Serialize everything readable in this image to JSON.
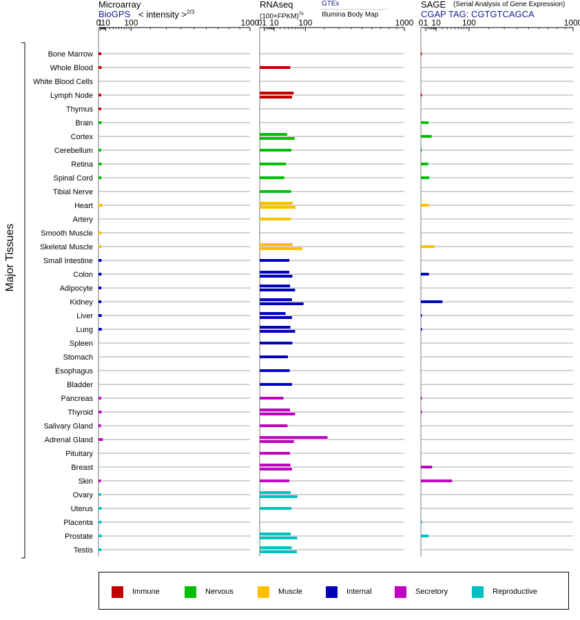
{
  "panels": [
    {
      "title": "Microarray",
      "link": "BioGPS",
      "subtitle": "< intensity >",
      "subtitle_exp": "2/3"
    },
    {
      "title": "RNAseq",
      "subtitle": "(100×FPKM)",
      "subtitle_exp": "½",
      "link": "GTEx",
      "link2": "Illumina Body Map"
    },
    {
      "title": "SAGE",
      "title_note": "(Serial Analysis of Gene Expression)",
      "link": "CGAP TAG: CGTGTCAGCA"
    }
  ],
  "yaxis_title": "Major Tissues",
  "legend": [
    {
      "label": "Immune",
      "color": "#c00000"
    },
    {
      "label": "Nervous",
      "color": "#00c000"
    },
    {
      "label": "Muscle",
      "color": "#ffc000"
    },
    {
      "label": "Internal",
      "color": "#0000bb"
    },
    {
      "label": "Secretory",
      "color": "#c000c0"
    },
    {
      "label": "Reproductive",
      "color": "#00c0c0"
    }
  ],
  "chart_data": {
    "type": "bar",
    "scale": "log-like (value^(2/3) and value^(1/2) transforms)",
    "xticks": [
      "0",
      "1",
      "10",
      "100",
      "1000"
    ],
    "xtick_values": [
      0,
      1,
      10,
      100,
      1000
    ],
    "xlim": [
      0,
      1000
    ],
    "categories": [
      "Bone Marrow",
      "Whole Blood",
      "White Blood Cells",
      "Lymph Node",
      "Thymus",
      "Brain",
      "Cortex",
      "Cerebellum",
      "Retina",
      "Spinal Cord",
      "Tibial Nerve",
      "Heart",
      "Artery",
      "Smooth Muscle",
      "Skeletal Muscle",
      "Small Intestine",
      "Colon",
      "Adipocyte",
      "Kidney",
      "Liver",
      "Lung",
      "Spleen",
      "Stomach",
      "Esophagus",
      "Bladder",
      "Pancreas",
      "Thyroid",
      "Salivary Gland",
      "Adrenal Gland",
      "Pituitary",
      "Breast",
      "Skin",
      "Ovary",
      "Uterus",
      "Placenta",
      "Prostate",
      "Testis"
    ],
    "groups": [
      "Immune",
      "Immune",
      "Immune",
      "Immune",
      "Immune",
      "Nervous",
      "Nervous",
      "Nervous",
      "Nervous",
      "Nervous",
      "Nervous",
      "Muscle",
      "Muscle",
      "Muscle",
      "Muscle",
      "Internal",
      "Internal",
      "Internal",
      "Internal",
      "Internal",
      "Internal",
      "Internal",
      "Internal",
      "Internal",
      "Internal",
      "Secretory",
      "Secretory",
      "Secretory",
      "Secretory",
      "Secretory",
      "Secretory",
      "Secretory",
      "Reproductive",
      "Reproductive",
      "Reproductive",
      "Reproductive",
      "Reproductive"
    ],
    "series": [
      {
        "name": "Microarray",
        "values": [
          [
            2.5
          ],
          [
            2.8
          ],
          [],
          [
            2.3
          ],
          [
            2.2
          ],
          [
            2.9
          ],
          [],
          [
            2.2
          ],
          [
            2.9
          ],
          [
            2.6
          ],
          [],
          [
            4.0
          ],
          [],
          [
            2.7
          ],
          [
            2.7
          ],
          [
            2.8
          ],
          [
            2.8
          ],
          [
            2.5
          ],
          [
            2.4
          ],
          [
            3.1
          ],
          [
            3.1
          ],
          [],
          [],
          [],
          [],
          [
            2.2
          ],
          [
            2.8
          ],
          [
            2.0
          ],
          [
            4.8
          ],
          [],
          [],
          [
            2.0
          ],
          [
            1.9
          ],
          [
            2.8
          ],
          [
            2.7
          ],
          [
            2.9
          ],
          [
            2.6
          ]
        ]
      },
      {
        "name": "RNAseq",
        "values": [
          [],
          [
            45
          ],
          [],
          [
            55,
            50
          ],
          [],
          [],
          [
            36,
            58
          ],
          [
            48
          ],
          [
            33
          ],
          [
            29
          ],
          [
            47
          ],
          [
            52,
            61
          ],
          [
            47
          ],
          [],
          [
            52,
            88
          ],
          [
            42
          ],
          [
            42,
            51
          ],
          [
            44,
            60
          ],
          [
            50,
            92
          ],
          [
            32,
            50
          ],
          [
            45,
            60
          ],
          [
            51
          ],
          [
            38
          ],
          [
            43
          ],
          [
            50
          ],
          [
            27
          ],
          [
            44,
            60
          ],
          [
            37
          ],
          [
            220,
            56
          ],
          [
            44
          ],
          [
            45,
            50
          ],
          [
            42
          ],
          [
            46,
            68
          ],
          [
            48
          ],
          [],
          [
            46,
            67
          ],
          [
            49,
            66
          ]
        ]
      },
      {
        "name": "SAGE",
        "values": [
          [
            0.02
          ],
          [],
          [],
          [
            0.02
          ],
          [],
          [
            2.5
          ],
          [
            5.0
          ],
          [
            0.01
          ],
          [
            2.3
          ],
          [
            3.0
          ],
          [],
          [
            2.8
          ],
          [],
          [],
          [
            8.0
          ],
          [],
          [
            2.8
          ],
          [],
          [
            20
          ],
          [
            0.01
          ],
          [
            0.01
          ],
          [],
          [],
          [],
          [],
          [
            0.02
          ],
          [
            0.02
          ],
          [],
          [],
          [],
          [
            5.5
          ],
          [
            42
          ],
          [],
          [],
          [
            0.01
          ],
          [
            2.6
          ],
          []
        ]
      }
    ]
  }
}
